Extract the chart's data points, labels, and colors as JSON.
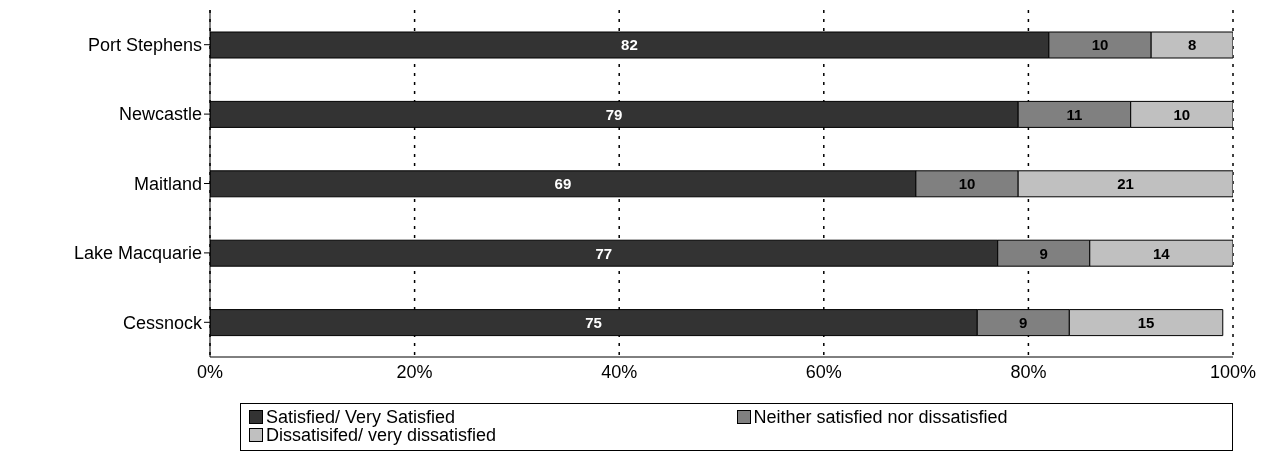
{
  "chart_data": {
    "type": "bar",
    "orientation": "horizontal",
    "stacked": true,
    "categories": [
      "Port Stephens",
      "Newcastle",
      "Maitland",
      "Lake Macquarie",
      "Cessnock"
    ],
    "series": [
      {
        "name": "Satisfied/ Very Satisfied",
        "color": "#333333",
        "values": [
          82,
          79,
          69,
          77,
          75
        ]
      },
      {
        "name": "Neither satisfied nor dissatisfied",
        "color": "#808080",
        "values": [
          10,
          11,
          10,
          9,
          9
        ]
      },
      {
        "name": "Dissatisifed/ very dissatisfied",
        "color": "#c0c0c0",
        "values": [
          8,
          10,
          21,
          14,
          15
        ]
      }
    ],
    "xlim": [
      0,
      100
    ],
    "xticks": [
      {
        "value": 0,
        "label": "0%"
      },
      {
        "value": 20,
        "label": "20%"
      },
      {
        "value": 40,
        "label": "40%"
      },
      {
        "value": 60,
        "label": "60%"
      },
      {
        "value": 80,
        "label": "80%"
      },
      {
        "value": 100,
        "label": "100%"
      }
    ],
    "grid": "x",
    "legend": "bottom",
    "data_labels": true
  }
}
